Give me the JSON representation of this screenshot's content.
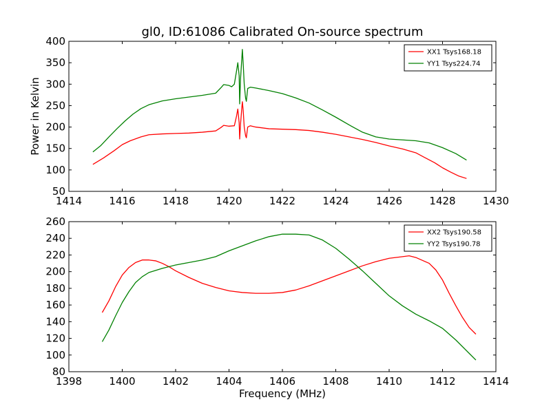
{
  "chart_data": [
    {
      "type": "line",
      "title": "gl0, ID:61086 Calibrated On-source spectrum",
      "xlabel": "",
      "ylabel": "Power in Kelvin",
      "xlim": [
        1414,
        1430
      ],
      "ylim": [
        50,
        400
      ],
      "xticks": [
        1414,
        1416,
        1418,
        1420,
        1422,
        1424,
        1426,
        1428,
        1430
      ],
      "yticks": [
        50,
        100,
        150,
        200,
        250,
        300,
        350,
        400
      ],
      "legend": "top-right",
      "grid": false,
      "series": [
        {
          "name": "XX1 Tsys168.18",
          "color": "#ff0000",
          "points": [
            [
              1414.9,
              113
            ],
            [
              1415.3,
              128
            ],
            [
              1415.7,
              145
            ],
            [
              1416.0,
              159
            ],
            [
              1416.3,
              168
            ],
            [
              1416.7,
              177
            ],
            [
              1417.0,
              182
            ],
            [
              1417.5,
              184
            ],
            [
              1418.0,
              185
            ],
            [
              1418.5,
              186
            ],
            [
              1419.0,
              188
            ],
            [
              1419.5,
              191
            ],
            [
              1419.7,
              199
            ],
            [
              1419.8,
              204
            ],
            [
              1420.0,
              202
            ],
            [
              1420.2,
              203
            ],
            [
              1420.28,
              225
            ],
            [
              1420.33,
              242
            ],
            [
              1420.38,
              210
            ],
            [
              1420.4,
              172
            ],
            [
              1420.43,
              205
            ],
            [
              1420.48,
              245
            ],
            [
              1420.5,
              259
            ],
            [
              1420.53,
              240
            ],
            [
              1420.57,
              200
            ],
            [
              1420.62,
              180
            ],
            [
              1420.65,
              175
            ],
            [
              1420.7,
              200
            ],
            [
              1420.8,
              203
            ],
            [
              1421.0,
              200
            ],
            [
              1421.5,
              196
            ],
            [
              1422.0,
              195
            ],
            [
              1422.5,
              194
            ],
            [
              1423.0,
              192
            ],
            [
              1423.5,
              188
            ],
            [
              1424.0,
              183
            ],
            [
              1424.5,
              177
            ],
            [
              1425.0,
              171
            ],
            [
              1425.5,
              164
            ],
            [
              1426.0,
              156
            ],
            [
              1426.5,
              149
            ],
            [
              1427.0,
              140
            ],
            [
              1427.3,
              130
            ],
            [
              1427.7,
              117
            ],
            [
              1428.0,
              105
            ],
            [
              1428.3,
              95
            ],
            [
              1428.6,
              86
            ],
            [
              1428.9,
              80
            ]
          ]
        },
        {
          "name": "YY1 Tsys224.74",
          "color": "#008000",
          "points": [
            [
              1414.9,
              142
            ],
            [
              1415.2,
              157
            ],
            [
              1415.5,
              177
            ],
            [
              1415.8,
              196
            ],
            [
              1416.1,
              214
            ],
            [
              1416.4,
              230
            ],
            [
              1416.7,
              243
            ],
            [
              1417.0,
              252
            ],
            [
              1417.5,
              261
            ],
            [
              1418.0,
              266
            ],
            [
              1418.5,
              270
            ],
            [
              1419.0,
              274
            ],
            [
              1419.5,
              279
            ],
            [
              1419.7,
              292
            ],
            [
              1419.8,
              299
            ],
            [
              1420.0,
              297
            ],
            [
              1420.1,
              294
            ],
            [
              1420.2,
              300
            ],
            [
              1420.28,
              330
            ],
            [
              1420.33,
              350
            ],
            [
              1420.38,
              320
            ],
            [
              1420.4,
              254
            ],
            [
              1420.43,
              310
            ],
            [
              1420.48,
              360
            ],
            [
              1420.5,
              381
            ],
            [
              1420.53,
              350
            ],
            [
              1420.57,
              300
            ],
            [
              1420.62,
              268
            ],
            [
              1420.65,
              260
            ],
            [
              1420.7,
              290
            ],
            [
              1420.8,
              293
            ],
            [
              1421.0,
              291
            ],
            [
              1421.5,
              285
            ],
            [
              1422.0,
              278
            ],
            [
              1422.5,
              268
            ],
            [
              1423.0,
              256
            ],
            [
              1423.5,
              240
            ],
            [
              1424.0,
              223
            ],
            [
              1424.5,
              205
            ],
            [
              1425.0,
              188
            ],
            [
              1425.5,
              177
            ],
            [
              1426.0,
              172
            ],
            [
              1426.5,
              170
            ],
            [
              1427.0,
              168
            ],
            [
              1427.5,
              163
            ],
            [
              1428.0,
              152
            ],
            [
              1428.5,
              138
            ],
            [
              1428.9,
              123
            ]
          ]
        }
      ]
    },
    {
      "type": "line",
      "title": "",
      "xlabel": "Frequency (MHz)",
      "ylabel": "",
      "xlim": [
        1398,
        1414
      ],
      "ylim": [
        80,
        260
      ],
      "xticks": [
        1398,
        1400,
        1402,
        1404,
        1406,
        1408,
        1410,
        1412,
        1414
      ],
      "yticks": [
        80,
        100,
        120,
        140,
        160,
        180,
        200,
        220,
        240,
        260
      ],
      "legend": "top-right",
      "grid": false,
      "series": [
        {
          "name": "XX2 Tsys190.58",
          "color": "#ff0000",
          "points": [
            [
              1399.25,
              151
            ],
            [
              1399.5,
              165
            ],
            [
              1399.75,
              182
            ],
            [
              1400.0,
              196
            ],
            [
              1400.25,
              205
            ],
            [
              1400.5,
              211
            ],
            [
              1400.75,
              214
            ],
            [
              1401.0,
              214
            ],
            [
              1401.25,
              213
            ],
            [
              1401.5,
              210
            ],
            [
              1401.75,
              206
            ],
            [
              1402.0,
              201
            ],
            [
              1402.5,
              193
            ],
            [
              1403.0,
              186
            ],
            [
              1403.5,
              181
            ],
            [
              1404.0,
              177
            ],
            [
              1404.5,
              175
            ],
            [
              1405.0,
              174
            ],
            [
              1405.5,
              174
            ],
            [
              1406.0,
              175
            ],
            [
              1406.5,
              178
            ],
            [
              1407.0,
              183
            ],
            [
              1407.5,
              189
            ],
            [
              1408.0,
              195
            ],
            [
              1408.5,
              201
            ],
            [
              1409.0,
              207
            ],
            [
              1409.5,
              212
            ],
            [
              1410.0,
              216
            ],
            [
              1410.5,
              218
            ],
            [
              1410.75,
              219
            ],
            [
              1411.0,
              217
            ],
            [
              1411.5,
              210
            ],
            [
              1411.75,
              202
            ],
            [
              1412.0,
              190
            ],
            [
              1412.25,
              174
            ],
            [
              1412.5,
              159
            ],
            [
              1412.75,
              145
            ],
            [
              1413.0,
              133
            ],
            [
              1413.25,
              125
            ]
          ]
        },
        {
          "name": "YY2 Tsys190.78",
          "color": "#008000",
          "points": [
            [
              1399.25,
              116
            ],
            [
              1399.5,
              130
            ],
            [
              1399.75,
              147
            ],
            [
              1400.0,
              163
            ],
            [
              1400.25,
              176
            ],
            [
              1400.5,
              187
            ],
            [
              1400.75,
              194
            ],
            [
              1401.0,
              199
            ],
            [
              1401.5,
              204
            ],
            [
              1402.0,
              208
            ],
            [
              1402.5,
              211
            ],
            [
              1403.0,
              214
            ],
            [
              1403.5,
              218
            ],
            [
              1404.0,
              225
            ],
            [
              1404.5,
              231
            ],
            [
              1405.0,
              237
            ],
            [
              1405.5,
              242
            ],
            [
              1406.0,
              245
            ],
            [
              1406.5,
              245
            ],
            [
              1407.0,
              244
            ],
            [
              1407.5,
              238
            ],
            [
              1408.0,
              228
            ],
            [
              1408.5,
              215
            ],
            [
              1409.0,
              201
            ],
            [
              1409.5,
              186
            ],
            [
              1410.0,
              171
            ],
            [
              1410.5,
              159
            ],
            [
              1411.0,
              149
            ],
            [
              1411.5,
              141
            ],
            [
              1412.0,
              132
            ],
            [
              1412.5,
              118
            ],
            [
              1413.0,
              102
            ],
            [
              1413.25,
              94
            ]
          ]
        }
      ]
    }
  ]
}
